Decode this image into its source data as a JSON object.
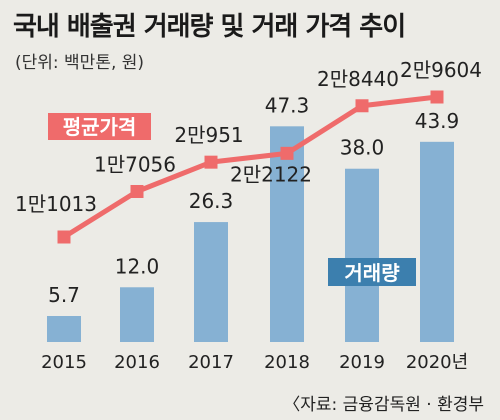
{
  "chart_data": {
    "type": "bar+line",
    "title": "국내 배출권 거래량 및 거래 가격 추이",
    "unit_label": "(단위: 백만톤, 원)",
    "source": "〈자료: 금융감독원 · 환경부",
    "categories": [
      "2015",
      "2016",
      "2017",
      "2018",
      "2019",
      "2020년"
    ],
    "series": [
      {
        "name": "거래량",
        "type": "bar",
        "color": "#86b1d3",
        "values": [
          5.7,
          12.0,
          26.3,
          47.3,
          38.0,
          43.9
        ],
        "labels": [
          "5.7",
          "12.0",
          "26.3",
          "47.3",
          "38.0",
          "43.9"
        ]
      },
      {
        "name": "평균가격",
        "type": "line",
        "color": "#ef6b6b",
        "values": [
          11013,
          17056,
          20951,
          22122,
          28440,
          29604
        ],
        "labels": [
          "1만1013",
          "1만7056",
          "2만951",
          "2만2122",
          "2만8440",
          "2만9604"
        ]
      }
    ],
    "legend_tags": {
      "line_color": "#ef6b6b",
      "bar_tag_color": "#3c7fae"
    }
  }
}
